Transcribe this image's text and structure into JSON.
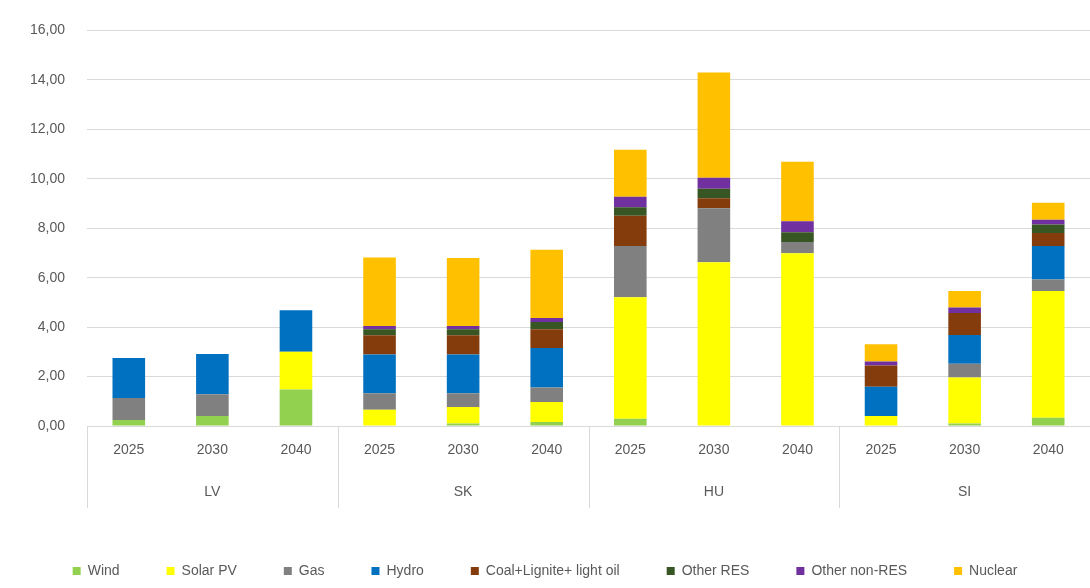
{
  "chart_data": {
    "type": "bar",
    "stacked": true,
    "categories": [
      "2025",
      "2030",
      "2040",
      "2025",
      "2030",
      "2040",
      "2025",
      "2030",
      "2040",
      "2025",
      "2030",
      "2040"
    ],
    "annotations": [
      "LV",
      "SK",
      "HU",
      "SI"
    ],
    "series": [
      {
        "name": "Wind",
        "color": "#92d050",
        "values": [
          0.24,
          0.4,
          1.48,
          0,
          0.1,
          0.16,
          0.29,
          0,
          0,
          0,
          0.1,
          0.33
        ]
      },
      {
        "name": "Solar PV",
        "color": "#ffff00",
        "values": [
          0,
          0,
          1.52,
          0.66,
          0.67,
          0.81,
          4.92,
          6.62,
          6.99,
          0.4,
          1.86,
          5.13
        ]
      },
      {
        "name": "Gas",
        "color": "#808080",
        "values": [
          0.89,
          0.88,
          0,
          0.66,
          0.55,
          0.59,
          2.07,
          2.19,
          0.45,
          0,
          0.56,
          0.47
        ]
      },
      {
        "name": "Hydro",
        "color": "#0070c0",
        "values": [
          1.62,
          1.63,
          1.68,
          1.57,
          1.57,
          1.59,
          0,
          0,
          0,
          1.19,
          1.16,
          1.35
        ]
      },
      {
        "name": "Coal+Lignite+ light oil",
        "color": "#843c0c",
        "values": [
          0,
          0,
          0,
          0.78,
          0.78,
          0.76,
          1.22,
          0.4,
          0,
          0.86,
          0.89,
          0.53
        ]
      },
      {
        "name": "Other RES",
        "color": "#375623",
        "values": [
          0,
          0,
          0,
          0.24,
          0.24,
          0.3,
          0.35,
          0.39,
          0.4,
          0,
          0,
          0.34
        ]
      },
      {
        "name": "Other non-RES",
        "color": "#7030a0",
        "values": [
          0,
          0,
          0,
          0.13,
          0.13,
          0.16,
          0.42,
          0.44,
          0.44,
          0.16,
          0.22,
          0.19
        ]
      },
      {
        "name": "Nuclear",
        "color": "#ffc000",
        "values": [
          0,
          0,
          0,
          2.78,
          2.75,
          2.76,
          1.9,
          4.26,
          2.41,
          0.7,
          0.67,
          0.69
        ]
      }
    ],
    "ylim": [
      0,
      16
    ],
    "yticks": [
      {
        "value": 0,
        "label": "0,00"
      },
      {
        "value": 2,
        "label": "2,00"
      },
      {
        "value": 4,
        "label": "4,00"
      },
      {
        "value": 6,
        "label": "6,00"
      },
      {
        "value": 8,
        "label": "8,00"
      },
      {
        "value": 10,
        "label": "10,00"
      },
      {
        "value": 12,
        "label": "12,00"
      },
      {
        "value": 14,
        "label": "14,00"
      },
      {
        "value": 16,
        "label": "16,00"
      }
    ],
    "grid": "y",
    "legend": "bottom"
  }
}
